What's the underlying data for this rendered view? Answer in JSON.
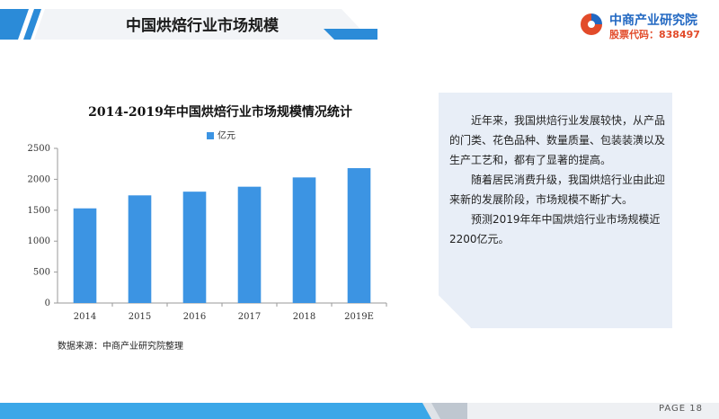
{
  "header": {
    "title": "中国烘焙行业市场规模"
  },
  "logo": {
    "name": "中商产业研究院",
    "stock": "股票代码：838497"
  },
  "chart_data": {
    "type": "bar",
    "title": "2014-2019年中国烘焙行业市场规模情况统计",
    "categories": [
      "2014",
      "2015",
      "2016",
      "2017",
      "2018",
      "2019E"
    ],
    "series": [
      {
        "name": "亿元",
        "values": [
          1530,
          1740,
          1800,
          1880,
          2030,
          2180
        ],
        "color": "#3c94e3"
      }
    ],
    "yticks": [
      "0",
      "500",
      "1000",
      "1500",
      "2000",
      "2500"
    ],
    "ylim": [
      0,
      2500
    ],
    "grid": false,
    "legend_position": "top-center"
  },
  "source": "数据来源：中商产业研究院整理",
  "panel": {
    "paragraphs": [
      "近年来，我国烘焙行业发展较快，从产品的门类、花色品种、数量质量、包装装潢以及生产工艺和，都有了显著的提高。",
      "随着居民消费升级，我国烘焙行业由此迎来新的发展阶段，市场规模不断扩大。",
      "预测2019年年中国烘焙行业市场规模近2200亿元。"
    ]
  },
  "footer": {
    "page": "PAGE 18"
  },
  "colors": {
    "accent": "#2b8bd8",
    "bar": "#3c94e3",
    "panel_bg": "#e8eef7",
    "footer_blue": "#3ba7e8"
  }
}
